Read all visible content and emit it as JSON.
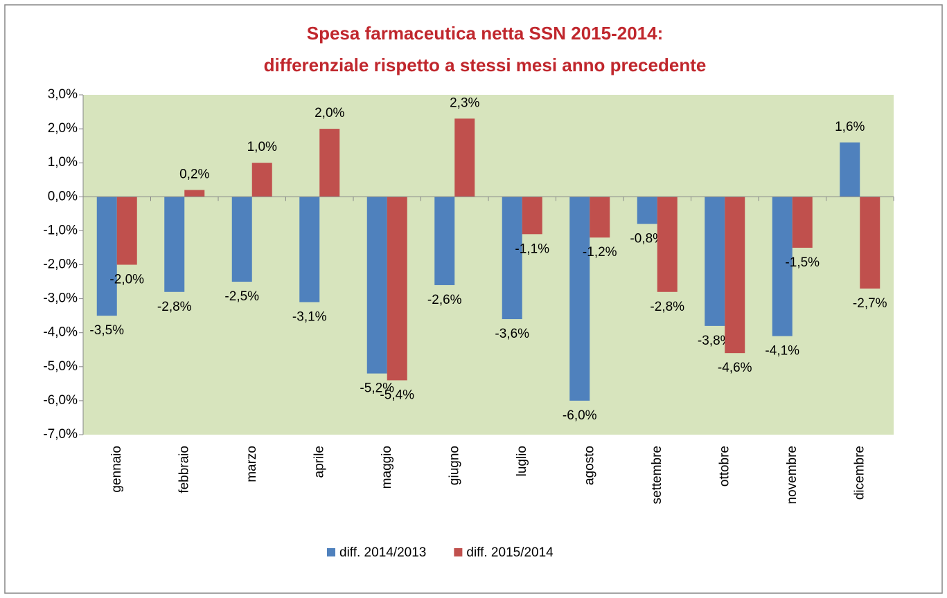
{
  "chart_data": {
    "type": "bar",
    "title": [
      "Spesa farmaceutica netta SSN 2015-2014:",
      "differenziale rispetto a stessi mesi anno precedente"
    ],
    "categories": [
      "gennaio",
      "febbraio",
      "marzo",
      "aprile",
      "maggio",
      "giugno",
      "luglio",
      "agosto",
      "settembre",
      "ottobre",
      "novembre",
      "dicembre"
    ],
    "series": [
      {
        "name": "diff. 2014/2013",
        "color": "#4f81bd",
        "values": [
          -3.5,
          -2.8,
          -2.5,
          -3.1,
          -5.2,
          -2.6,
          -3.6,
          -6.0,
          -0.8,
          -3.8,
          -4.1,
          1.6
        ],
        "value_labels": [
          "-3,5%",
          "-2,8%",
          "-2,5%",
          "-3,1%",
          "-5,2%",
          "-2,6%",
          "-3,6%",
          "-6,0%",
          "-0,8%",
          "-3,8%",
          "-4,1%",
          "1,6%"
        ]
      },
      {
        "name": "diff. 2015/2014",
        "color": "#c0504d",
        "values": [
          -2.0,
          0.2,
          1.0,
          2.0,
          -5.4,
          2.3,
          -1.1,
          -1.2,
          -2.8,
          -4.6,
          -1.5,
          -2.7
        ],
        "value_labels": [
          "-2,0%",
          "0,2%",
          "1,0%",
          "2,0%",
          "-5,4%",
          "2,3%",
          "-1,1%",
          "-1,2%",
          "-2,8%",
          "-4,6%",
          "-1,5%",
          "-2,7%"
        ]
      }
    ],
    "ylim": [
      -7,
      3
    ],
    "yticks": [
      {
        "value": 3,
        "label": "3,0%"
      },
      {
        "value": 2,
        "label": "2,0%"
      },
      {
        "value": 1,
        "label": "1,0%"
      },
      {
        "value": 0,
        "label": "0,0%"
      },
      {
        "value": -1,
        "label": "-1,0%"
      },
      {
        "value": -2,
        "label": "-2,0%"
      },
      {
        "value": -3,
        "label": "-3,0%"
      },
      {
        "value": -4,
        "label": "-4,0%"
      },
      {
        "value": -5,
        "label": "-5,0%"
      },
      {
        "value": -6,
        "label": "-6,0%"
      },
      {
        "value": -7,
        "label": "-7,0%"
      }
    ],
    "grid": false,
    "plot_background": "#d7e4bd",
    "legend": "bottom"
  }
}
